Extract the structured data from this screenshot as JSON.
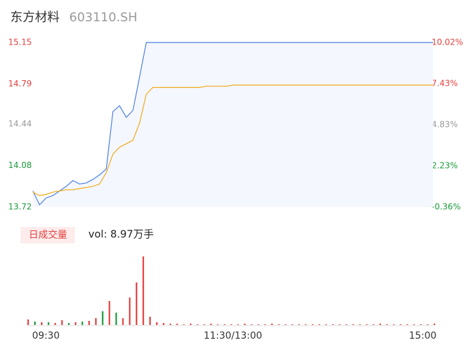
{
  "chart_data": {
    "type": "line",
    "title": "东方材料",
    "subtitle": "603110.SH",
    "ylim": [
      13.72,
      15.15
    ],
    "yticks": [
      {
        "value": 15.15,
        "label": "15.15"
      },
      {
        "value": 14.79,
        "label": "14.79"
      },
      {
        "value": 14.44,
        "label": "14.44"
      },
      {
        "value": 14.08,
        "label": "14.08"
      },
      {
        "value": 13.72,
        "label": "13.72"
      }
    ],
    "ytick_colors": [
      "#e43f3f",
      "#e43f3f",
      "#999999",
      "#1a9a3a",
      "#1a9a3a"
    ],
    "y2lim": [
      -0.36,
      10.02
    ],
    "y2ticks": [
      {
        "value": 10.02,
        "label": "10.02%"
      },
      {
        "value": 7.43,
        "label": "7.43%"
      },
      {
        "value": 4.83,
        "label": "4.83%"
      },
      {
        "value": 2.23,
        "label": "2.23%"
      },
      {
        "value": -0.36,
        "label": "-0.36%"
      }
    ],
    "x_labels": [
      "09:30",
      "11:30/13:00",
      "15:00"
    ],
    "series": [
      {
        "color": "#4a7fe0",
        "values": [
          13.86,
          13.74,
          13.8,
          13.82,
          13.86,
          13.9,
          13.95,
          13.92,
          13.93,
          13.96,
          14.0,
          14.05,
          14.55,
          14.6,
          14.5,
          14.56,
          14.85,
          15.15,
          15.15,
          15.15,
          15.15,
          15.15,
          15.15,
          15.15,
          15.15,
          15.15,
          15.15,
          15.15,
          15.15,
          15.15,
          15.15,
          15.15,
          15.15,
          15.15,
          15.15,
          15.15,
          15.15,
          15.15,
          15.15,
          15.15,
          15.15,
          15.15,
          15.15,
          15.15,
          15.15,
          15.15,
          15.15,
          15.15,
          15.15,
          15.15,
          15.15,
          15.15,
          15.15,
          15.15,
          15.15,
          15.15,
          15.15,
          15.15,
          15.15,
          15.15,
          15.15
        ]
      },
      {
        "color": "#f0a818",
        "values": [
          13.85,
          13.82,
          13.83,
          13.85,
          13.86,
          13.87,
          13.87,
          13.88,
          13.89,
          13.9,
          13.92,
          14.02,
          14.18,
          14.24,
          14.27,
          14.3,
          14.45,
          14.7,
          14.76,
          14.76,
          14.76,
          14.76,
          14.76,
          14.76,
          14.76,
          14.76,
          14.77,
          14.77,
          14.77,
          14.77,
          14.78,
          14.78,
          14.78,
          14.78,
          14.78,
          14.78,
          14.78,
          14.78,
          14.78,
          14.78,
          14.78,
          14.78,
          14.78,
          14.78,
          14.78,
          14.78,
          14.78,
          14.78,
          14.78,
          14.78,
          14.78,
          14.78,
          14.78,
          14.78,
          14.78,
          14.78,
          14.78,
          14.78,
          14.78,
          14.78,
          14.78
        ]
      }
    ],
    "volume_label": "日成交量",
    "volume_text": "vol: 8.97万手",
    "volume": {
      "values": [
        8,
        5,
        4,
        4,
        3,
        7,
        3,
        4,
        5,
        6,
        10,
        20,
        35,
        18,
        10,
        40,
        62,
        100,
        12,
        4,
        3,
        2,
        2,
        1,
        2,
        1,
        1,
        2,
        1,
        1,
        1,
        1,
        2,
        1,
        1,
        1,
        2,
        1,
        1,
        1,
        1,
        1,
        1,
        1,
        1,
        1,
        1,
        1,
        1,
        1,
        1,
        1,
        2,
        1,
        1,
        1,
        1,
        1,
        1,
        1,
        2
      ],
      "colors": [
        "#e43f3f",
        "#1a9a3a",
        "#e43f3f",
        "#1a9a3a",
        "#e43f3f",
        "#e43f3f",
        "#1a9a3a",
        "#e43f3f",
        "#1a9a3a",
        "#e43f3f",
        "#e43f3f",
        "#1a9a3a",
        "#e43f3f",
        "#1a9a3a",
        "#e43f3f",
        "#e43f3f",
        "#e43f3f",
        "#e43f3f",
        "#e43f3f",
        "#e43f3f",
        "#e43f3f",
        "#e43f3f",
        "#e43f3f",
        "#e43f3f",
        "#e43f3f",
        "#e43f3f",
        "#e43f3f",
        "#e43f3f",
        "#e43f3f",
        "#e43f3f",
        "#e43f3f",
        "#e43f3f",
        "#e43f3f",
        "#e43f3f",
        "#e43f3f",
        "#e43f3f",
        "#e43f3f",
        "#e43f3f",
        "#e43f3f",
        "#e43f3f",
        "#e43f3f",
        "#e43f3f",
        "#e43f3f",
        "#e43f3f",
        "#e43f3f",
        "#e43f3f",
        "#e43f3f",
        "#e43f3f",
        "#e43f3f",
        "#e43f3f",
        "#e43f3f",
        "#e43f3f",
        "#e43f3f",
        "#e43f3f",
        "#e43f3f",
        "#e43f3f",
        "#e43f3f",
        "#e43f3f",
        "#e43f3f",
        "#e43f3f",
        "#e43f3f"
      ]
    }
  }
}
